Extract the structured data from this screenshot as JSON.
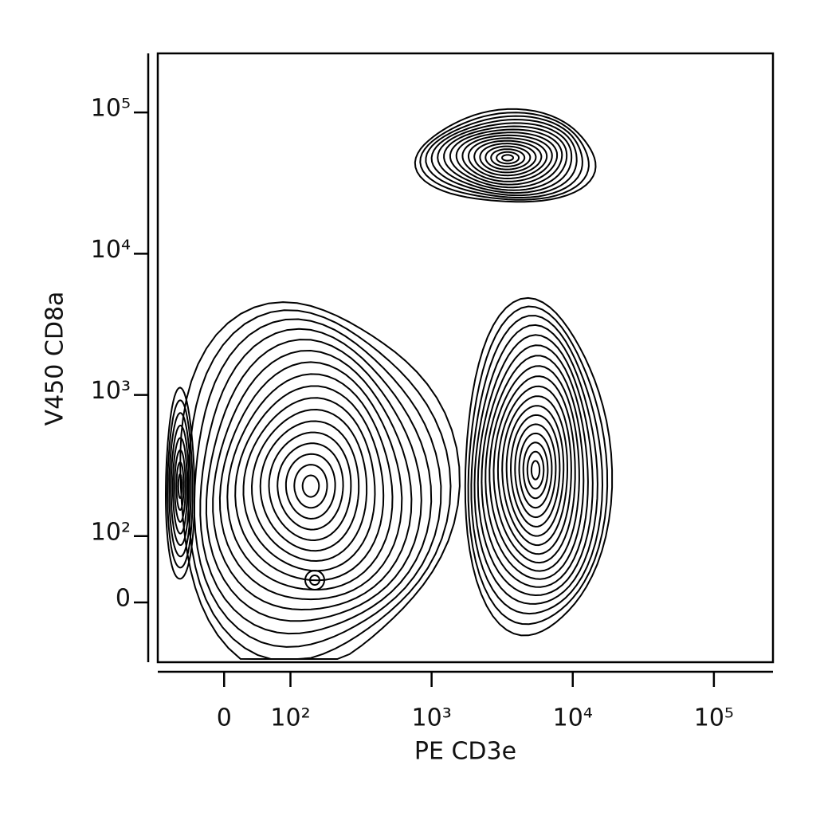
{
  "chart_data": {
    "type": "contour",
    "x_label": "PE CD3e",
    "y_label": "V450 CD8a",
    "scale": "biexponential",
    "xlim": [
      -100,
      262144
    ],
    "ylim": [
      -90,
      262144
    ],
    "xticks": [
      0,
      {
        "value": 100,
        "label": "10²"
      },
      {
        "value": 1000,
        "label": "10³"
      },
      {
        "value": 10000,
        "label": "10⁴"
      },
      {
        "value": 100000,
        "label": "10⁵"
      }
    ],
    "yticks": [
      0,
      {
        "value": 100,
        "label": "10²"
      },
      {
        "value": 1000,
        "label": "10³"
      },
      {
        "value": 10000,
        "label": "10⁴"
      },
      {
        "value": 100000,
        "label": "10⁵"
      }
    ],
    "color": "#000000"
  }
}
